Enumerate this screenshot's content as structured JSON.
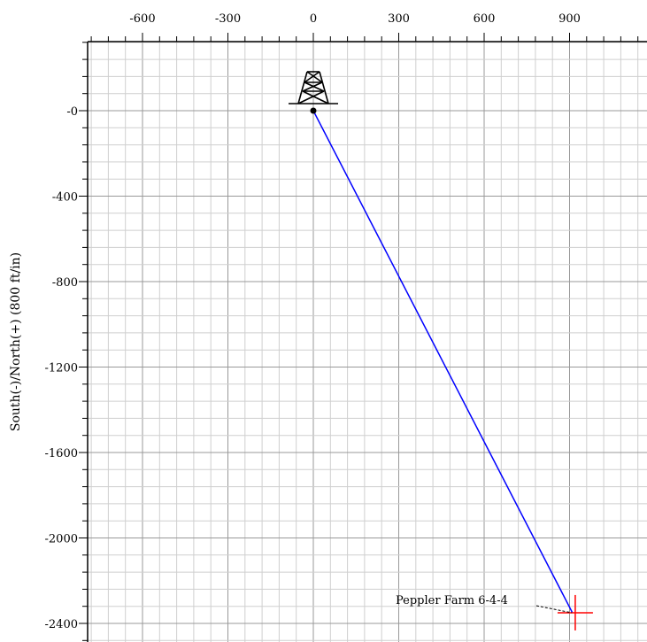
{
  "chart_data": {
    "type": "line",
    "title": "",
    "xlabel": "",
    "ylabel": "South(-)/North(+) (800 ft/in)",
    "xlim": [
      -800,
      1200
    ],
    "ylim": [
      -2480,
      350
    ],
    "grid": true,
    "x_ticks": [
      -600,
      -300,
      0,
      300,
      600,
      900
    ],
    "x_tick_labels": [
      "-600",
      "-300",
      "0",
      "300",
      "600",
      "900"
    ],
    "y_ticks": [
      0,
      -400,
      -800,
      -1200,
      -1600,
      -2000,
      -2400
    ],
    "y_tick_labels": [
      "-0",
      "-400",
      "-800",
      "-1200",
      "-1600",
      "-2000",
      "-2400"
    ],
    "series": [
      {
        "color": "#0000ff",
        "x": [
          0,
          910
        ],
        "y": [
          0,
          -2350
        ]
      }
    ],
    "surface_location": {
      "x": 0,
      "y": 0,
      "icon": "drilling-rig-icon"
    },
    "target": {
      "label": "Peppler Farm 6-4-4",
      "x": 920,
      "y": -2350,
      "color": "#ff0000"
    }
  }
}
